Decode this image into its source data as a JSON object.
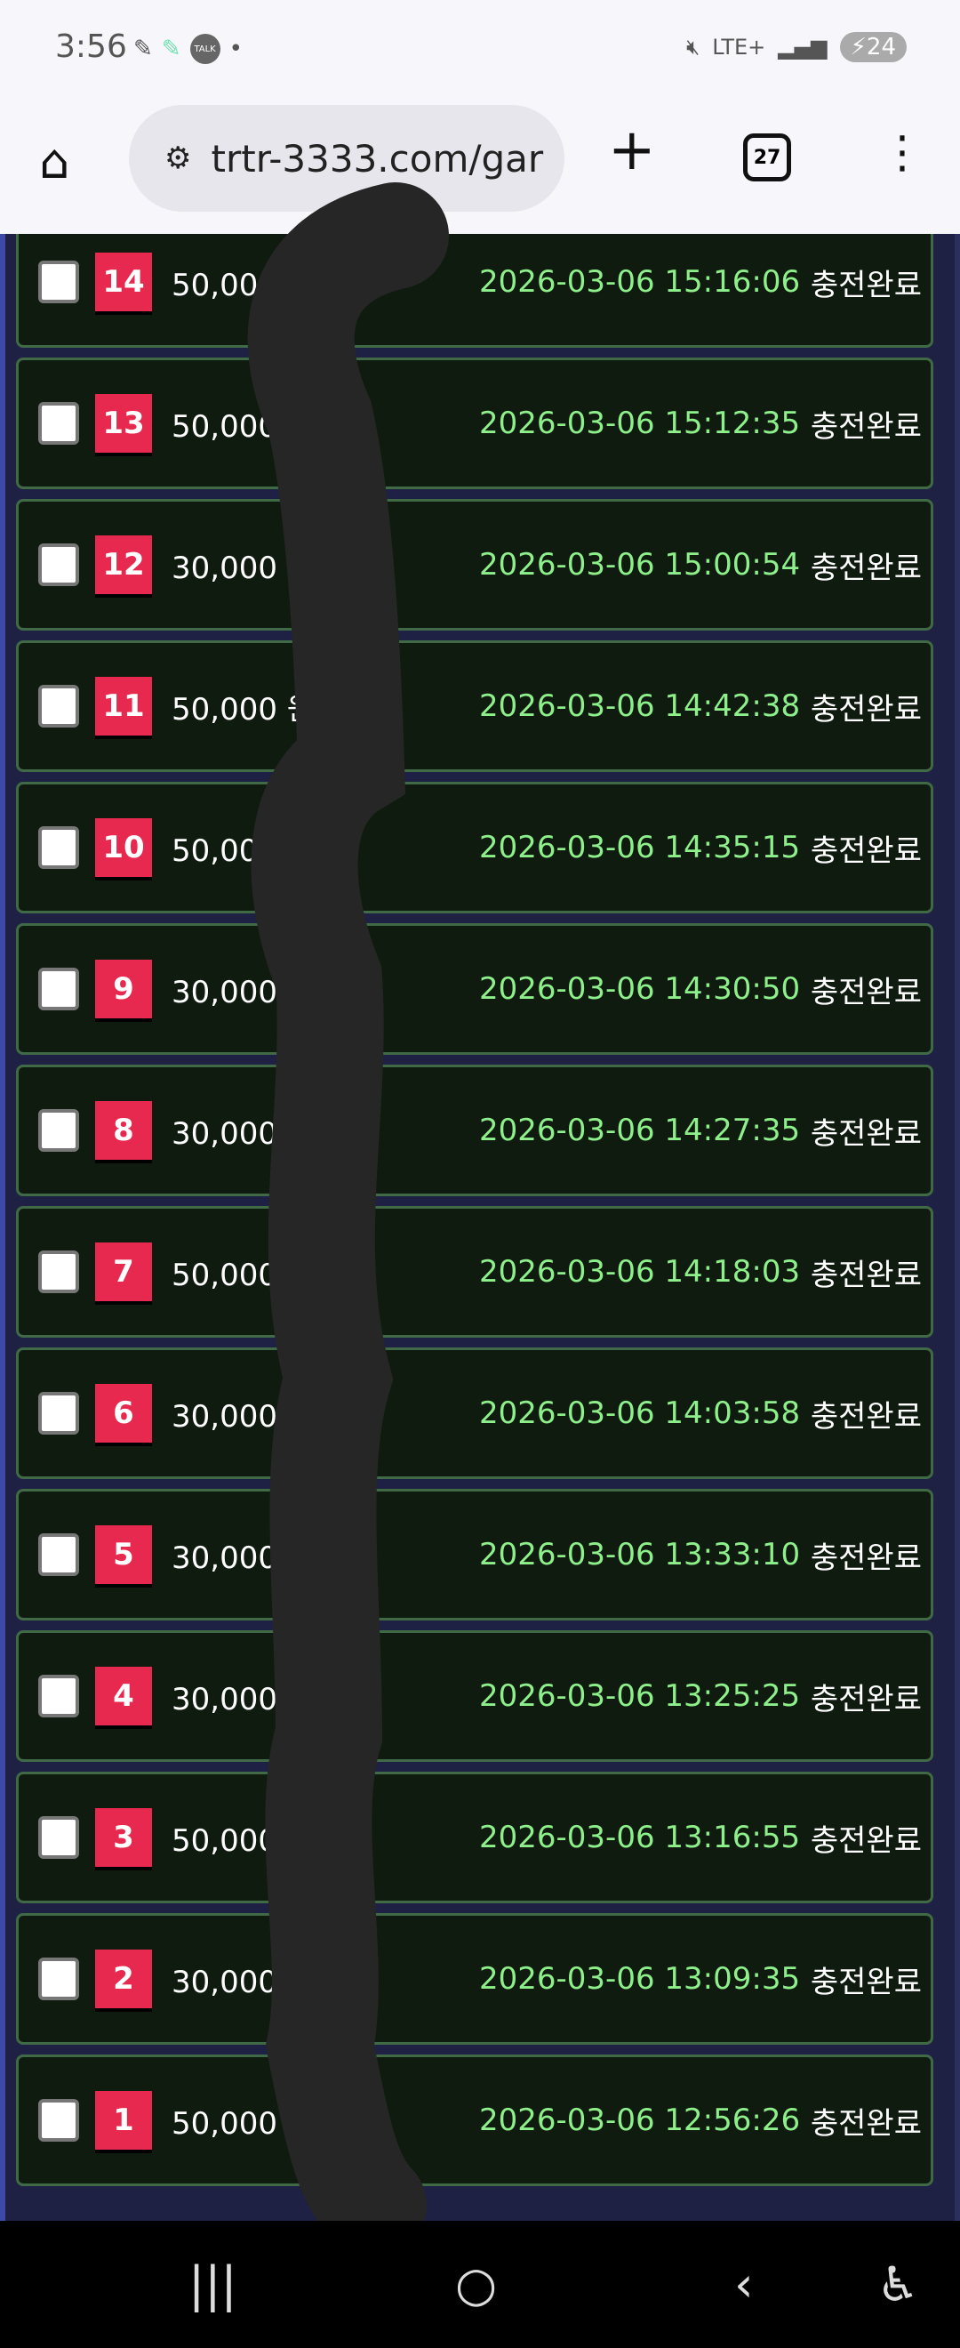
{
  "status_bar": {
    "time": "3:56",
    "network": "LTE+",
    "battery": "24"
  },
  "browser": {
    "url": "trtr-3333.com/gar",
    "tab_count": "27"
  },
  "rows": [
    {
      "no": "14",
      "amount": "50,000 원",
      "date": "2026-03-06 15:16:06",
      "status": "충전완료"
    },
    {
      "no": "13",
      "amount": "50,000 원",
      "date": "2026-03-06 15:12:35",
      "status": "충전완료"
    },
    {
      "no": "12",
      "amount": "30,000 원",
      "date": "2026-03-06 15:00:54",
      "status": "충전완료"
    },
    {
      "no": "11",
      "amount": "50,000 원",
      "date": "2026-03-06 14:42:38",
      "status": "충전완료"
    },
    {
      "no": "10",
      "amount": "50,000 원",
      "date": "2026-03-06 14:35:15",
      "status": "충전완료"
    },
    {
      "no": "9",
      "amount": "30,000 원",
      "date": "2026-03-06 14:30:50",
      "status": "충전완료"
    },
    {
      "no": "8",
      "amount": "30,000 원",
      "date": "2026-03-06 14:27:35",
      "status": "충전완료"
    },
    {
      "no": "7",
      "amount": "50,000 원",
      "date": "2026-03-06 14:18:03",
      "status": "충전완료"
    },
    {
      "no": "6",
      "amount": "30,000 원",
      "date": "2026-03-06 14:03:58",
      "status": "충전완료"
    },
    {
      "no": "5",
      "amount": "30,000 원",
      "date": "2026-03-06 13:33:10",
      "status": "충전완료"
    },
    {
      "no": "4",
      "amount": "30,000 원",
      "date": "2026-03-06 13:25:25",
      "status": "충전완료"
    },
    {
      "no": "3",
      "amount": "50,000 원",
      "date": "2026-03-06 13:16:55",
      "status": "충전완료"
    },
    {
      "no": "2",
      "amount": "30,000 원",
      "date": "2026-03-06 13:09:35",
      "status": "충전완료"
    },
    {
      "no": "1",
      "amount": "50,000 원",
      "date": "2026-03-06 12:56:26",
      "status": "충전완료"
    }
  ],
  "colors": {
    "badge": "#e8294f",
    "date": "#8ef08a",
    "card_bg": "#101b10",
    "card_border": "#3f6a45",
    "page_bg": "#1e2144"
  }
}
